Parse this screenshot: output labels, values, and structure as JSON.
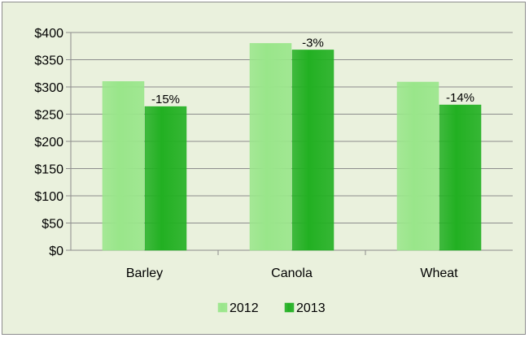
{
  "chart_data": {
    "type": "bar",
    "categories": [
      "Barley",
      "Canola",
      "Wheat"
    ],
    "series": [
      {
        "name": "2012",
        "values": [
          310,
          380,
          309
        ],
        "color": "#99e68a"
      },
      {
        "name": "2013",
        "values": [
          264,
          368,
          267
        ],
        "color": "#22b022"
      }
    ],
    "data_labels": {
      "series": "2013",
      "labels": [
        "-15%",
        "-3%",
        "-14%"
      ]
    },
    "y_ticks": [
      "$0",
      "$50",
      "$100",
      "$150",
      "$200",
      "$250",
      "$300",
      "$350",
      "$400"
    ],
    "ylim": [
      0,
      400
    ],
    "grid": true,
    "legend": "bottom",
    "colors": {
      "background": "#eaf1dd",
      "gridline": "#8c8c8c",
      "bar_2012": "#99e68a",
      "bar_2013": "#22b022"
    }
  }
}
